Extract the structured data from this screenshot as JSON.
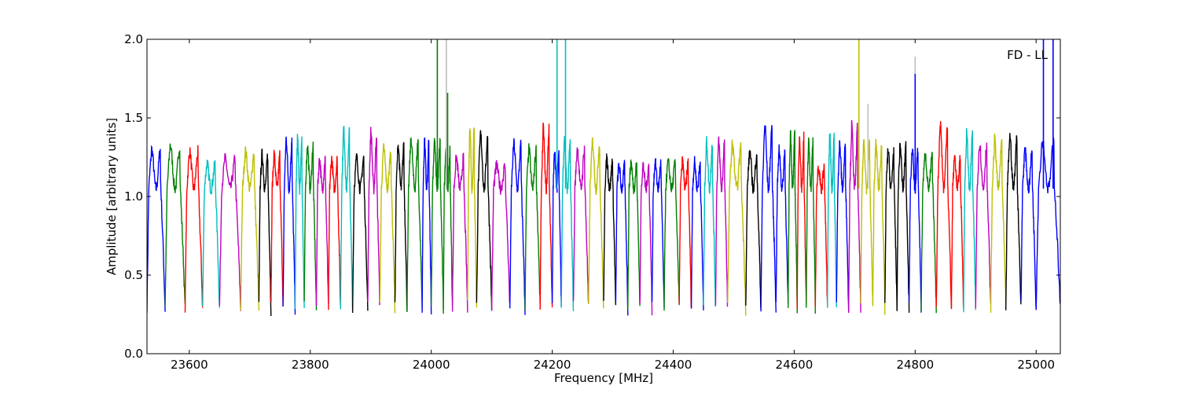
{
  "chart_data": {
    "type": "line",
    "title": "",
    "annotation": "FD - LL",
    "xlabel": "Frequency [MHz]",
    "ylabel": "Amplitude [arbitrary units]",
    "xlim": [
      23530,
      25040
    ],
    "ylim": [
      0.0,
      2.0
    ],
    "xticks": [
      23600,
      23800,
      24000,
      24200,
      24400,
      24600,
      24800,
      25000
    ],
    "yticks": [
      0.0,
      0.5,
      1.0,
      1.5,
      2.0
    ],
    "xtick_labels": [
      "23600",
      "23800",
      "24000",
      "24200",
      "24400",
      "24600",
      "24800",
      "25000"
    ],
    "ytick_labels": [
      "0.0",
      "0.5",
      "1.0",
      "1.5",
      "2.0"
    ],
    "grid": false,
    "legend": "none",
    "palette": [
      "#0000ff",
      "#008000",
      "#ff0000",
      "#00bfbf",
      "#bf00bf",
      "#bfbf00",
      "#000000"
    ],
    "spike_color": "#bfbfbf",
    "segments": [
      {
        "start": 23530,
        "end": 23560,
        "color": "#0000ff",
        "peak": 1.3
      },
      {
        "start": 23560,
        "end": 23593,
        "color": "#008000",
        "peak": 1.33
      },
      {
        "start": 23593,
        "end": 23622,
        "color": "#ff0000",
        "peak": 1.29
      },
      {
        "start": 23622,
        "end": 23650,
        "color": "#00bfbf",
        "peak": 1.21
      },
      {
        "start": 23650,
        "end": 23685,
        "color": "#bf00bf",
        "peak": 1.24
      },
      {
        "start": 23685,
        "end": 23715,
        "color": "#bfbf00",
        "peak": 1.29
      },
      {
        "start": 23715,
        "end": 23735,
        "color": "#000000",
        "peak": 1.27
      },
      {
        "start": 23735,
        "end": 23755,
        "color": "#ff0000",
        "peak": 1.27
      },
      {
        "start": 23755,
        "end": 23775,
        "color": "#0000ff",
        "peak": 1.37
      },
      {
        "start": 23775,
        "end": 23790,
        "color": "#00bfbf",
        "peak": 1.38
      },
      {
        "start": 23790,
        "end": 23810,
        "color": "#008000",
        "peak": 1.33
      },
      {
        "start": 23810,
        "end": 23830,
        "color": "#bf00bf",
        "peak": 1.24
      },
      {
        "start": 23830,
        "end": 23850,
        "color": "#ff0000",
        "peak": 1.24
      },
      {
        "start": 23850,
        "end": 23870,
        "color": "#00bfbf",
        "peak": 1.43
      },
      {
        "start": 23870,
        "end": 23895,
        "color": "#000000",
        "peak": 1.25
      },
      {
        "start": 23895,
        "end": 23915,
        "color": "#bf00bf",
        "peak": 1.41
      },
      {
        "start": 23915,
        "end": 23940,
        "color": "#bfbf00",
        "peak": 1.31
      },
      {
        "start": 23940,
        "end": 23960,
        "color": "#000000",
        "peak": 1.33
      },
      {
        "start": 23960,
        "end": 23985,
        "color": "#008000",
        "peak": 1.37
      },
      {
        "start": 23985,
        "end": 24000,
        "color": "#0000ff",
        "peak": 1.35
      },
      {
        "start": 24000,
        "end": 24020,
        "color": "#008000",
        "peak": 1.35
      },
      {
        "start": 24020,
        "end": 24035,
        "color": "#008000",
        "peak": 1.3
      },
      {
        "start": 24035,
        "end": 24060,
        "color": "#bf00bf",
        "peak": 1.25
      },
      {
        "start": 24060,
        "end": 24075,
        "color": "#bfbf00",
        "peak": 1.46
      },
      {
        "start": 24075,
        "end": 24100,
        "color": "#000000",
        "peak": 1.4
      },
      {
        "start": 24100,
        "end": 24130,
        "color": "#bf00bf",
        "peak": 1.2
      },
      {
        "start": 24130,
        "end": 24155,
        "color": "#0000ff",
        "peak": 1.34
      },
      {
        "start": 24155,
        "end": 24180,
        "color": "#008000",
        "peak": 1.3
      },
      {
        "start": 24180,
        "end": 24200,
        "color": "#ff0000",
        "peak": 1.43
      },
      {
        "start": 24200,
        "end": 24215,
        "color": "#0000ff",
        "peak": 1.3
      },
      {
        "start": 24215,
        "end": 24235,
        "color": "#00bfbf",
        "peak": 1.35
      },
      {
        "start": 24235,
        "end": 24260,
        "color": "#bf00bf",
        "peak": 1.31
      },
      {
        "start": 24260,
        "end": 24285,
        "color": "#bfbf00",
        "peak": 1.35
      },
      {
        "start": 24285,
        "end": 24305,
        "color": "#000000",
        "peak": 1.24
      },
      {
        "start": 24305,
        "end": 24325,
        "color": "#0000ff",
        "peak": 1.2
      },
      {
        "start": 24325,
        "end": 24345,
        "color": "#008000",
        "peak": 1.22
      },
      {
        "start": 24345,
        "end": 24365,
        "color": "#bf00bf",
        "peak": 1.2
      },
      {
        "start": 24365,
        "end": 24385,
        "color": "#0000ff",
        "peak": 1.22
      },
      {
        "start": 24385,
        "end": 24410,
        "color": "#008000",
        "peak": 1.22
      },
      {
        "start": 24410,
        "end": 24430,
        "color": "#ff0000",
        "peak": 1.22
      },
      {
        "start": 24430,
        "end": 24450,
        "color": "#0000ff",
        "peak": 1.22
      },
      {
        "start": 24450,
        "end": 24470,
        "color": "#00bfbf",
        "peak": 1.35
      },
      {
        "start": 24470,
        "end": 24490,
        "color": "#bf00bf",
        "peak": 1.35
      },
      {
        "start": 24490,
        "end": 24520,
        "color": "#bfbf00",
        "peak": 1.33
      },
      {
        "start": 24520,
        "end": 24545,
        "color": "#000000",
        "peak": 1.29
      },
      {
        "start": 24545,
        "end": 24570,
        "color": "#0000ff",
        "peak": 1.46
      },
      {
        "start": 24570,
        "end": 24590,
        "color": "#0000ff",
        "peak": 1.3
      },
      {
        "start": 24590,
        "end": 24605,
        "color": "#008000",
        "peak": 1.41
      },
      {
        "start": 24605,
        "end": 24620,
        "color": "#ff0000",
        "peak": 1.38
      },
      {
        "start": 24620,
        "end": 24635,
        "color": "#008000",
        "peak": 1.35
      },
      {
        "start": 24635,
        "end": 24655,
        "color": "#ff0000",
        "peak": 1.2
      },
      {
        "start": 24655,
        "end": 24670,
        "color": "#00bfbf",
        "peak": 1.4
      },
      {
        "start": 24670,
        "end": 24690,
        "color": "#0000ff",
        "peak": 1.33
      },
      {
        "start": 24690,
        "end": 24710,
        "color": "#bf00bf",
        "peak": 1.45
      },
      {
        "start": 24710,
        "end": 24730,
        "color": "#bfbf00",
        "peak": 1.36
      },
      {
        "start": 24730,
        "end": 24750,
        "color": "#bfbf00",
        "peak": 1.33
      },
      {
        "start": 24750,
        "end": 24770,
        "color": "#000000",
        "peak": 1.3
      },
      {
        "start": 24770,
        "end": 24790,
        "color": "#000000",
        "peak": 1.33
      },
      {
        "start": 24790,
        "end": 24810,
        "color": "#0000ff",
        "peak": 1.3
      },
      {
        "start": 24810,
        "end": 24835,
        "color": "#008000",
        "peak": 1.27
      },
      {
        "start": 24835,
        "end": 24860,
        "color": "#ff0000",
        "peak": 1.47
      },
      {
        "start": 24860,
        "end": 24880,
        "color": "#ff0000",
        "peak": 1.26
      },
      {
        "start": 24880,
        "end": 24900,
        "color": "#00bfbf",
        "peak": 1.4
      },
      {
        "start": 24900,
        "end": 24925,
        "color": "#bf00bf",
        "peak": 1.34
      },
      {
        "start": 24925,
        "end": 24950,
        "color": "#bfbf00",
        "peak": 1.36
      },
      {
        "start": 24950,
        "end": 24975,
        "color": "#000000",
        "peak": 1.39
      },
      {
        "start": 24975,
        "end": 25000,
        "color": "#0000ff",
        "peak": 1.3
      },
      {
        "start": 25000,
        "end": 25040,
        "color": "#0000ff",
        "peak": 1.36
      }
    ],
    "spikes": [
      {
        "x": 24010,
        "y": 2.0,
        "color": "#008000"
      },
      {
        "x": 24025,
        "y": 2.0,
        "color": "#bfbfbf"
      },
      {
        "x": 24027,
        "y": 1.66,
        "color": "#008000"
      },
      {
        "x": 24208,
        "y": 2.0,
        "color": "#00bfbf"
      },
      {
        "x": 24222,
        "y": 2.0,
        "color": "#00bfbf"
      },
      {
        "x": 24707,
        "y": 2.0,
        "color": "#bfbf00"
      },
      {
        "x": 24722,
        "y": 1.59,
        "color": "#bfbfbf"
      },
      {
        "x": 24800,
        "y": 1.89,
        "color": "#bfbfbf"
      },
      {
        "x": 24800,
        "y": 1.78,
        "color": "#0000ff"
      },
      {
        "x": 25012,
        "y": 2.0,
        "color": "#0000ff"
      },
      {
        "x": 25028,
        "y": 2.0,
        "color": "#0000ff"
      }
    ]
  }
}
